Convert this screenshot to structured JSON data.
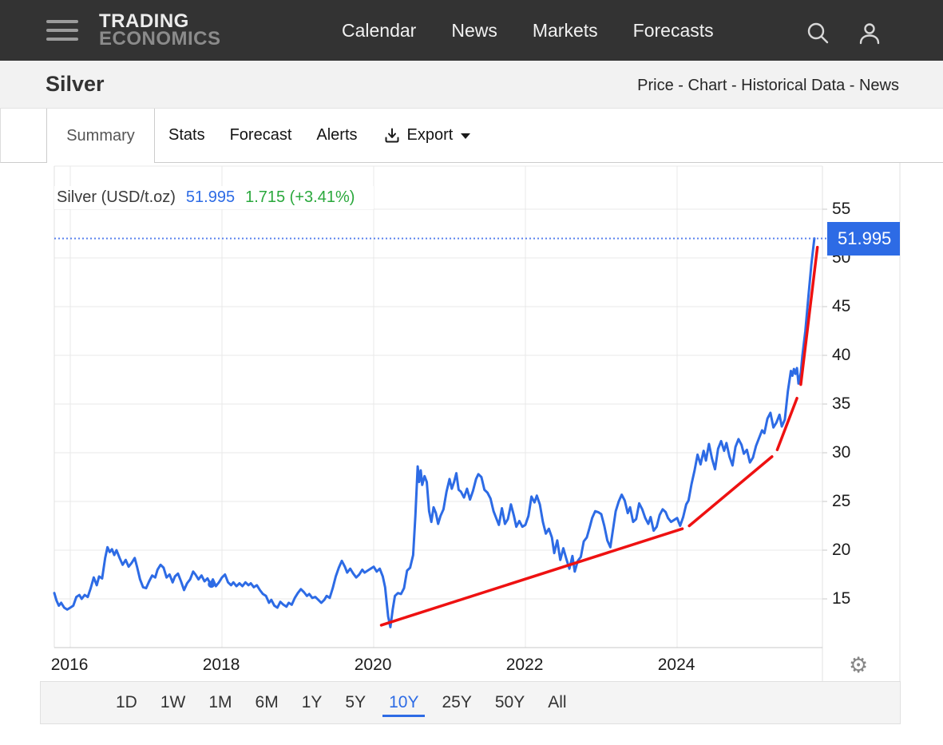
{
  "header": {
    "brand_line1": "TRADING",
    "brand_line2": "ECONOMICS",
    "nav": [
      "Calendar",
      "News",
      "Markets",
      "Forecasts"
    ]
  },
  "titlebar": {
    "title": "Silver",
    "breadcrumb": "Price - Chart - Historical Data - News"
  },
  "tabs": {
    "items": [
      "Summary",
      "Stats",
      "Forecast",
      "Alerts"
    ],
    "active": "Summary",
    "export_label": "Export"
  },
  "legend": {
    "name": "Silver (USD/t.oz)",
    "price": "51.995",
    "change": "1.715 (+3.41%)"
  },
  "price_marker": {
    "label": "51.995"
  },
  "controls": {
    "gear_glyph": "⚙"
  },
  "ranges": {
    "items": [
      "1D",
      "1W",
      "1M",
      "6M",
      "1Y",
      "5Y",
      "10Y",
      "25Y",
      "50Y",
      "All"
    ],
    "active": "10Y"
  },
  "colors": {
    "header_bg": "#333333",
    "blue": "#2d6be5",
    "dotted_blue": "#5b83ee",
    "green": "#2aa83c",
    "red": "#ee1111",
    "grid": "#e9e9e9",
    "axis": "#c9c9c9",
    "plot_border": "#e2e2e2",
    "label_box": "#2d6be5"
  },
  "chart_data": {
    "type": "line",
    "title": "Silver (USD/t.oz)",
    "unit": "USD/t.oz",
    "current_price": 51.995,
    "change": 1.715,
    "change_pct": "+3.41%",
    "x_ticks": [
      2016,
      2018,
      2020,
      2022,
      2024
    ],
    "y_ticks": [
      15,
      20,
      25,
      30,
      35,
      40,
      45,
      50,
      55
    ],
    "xlim": [
      2015.79,
      2026.0
    ],
    "ylim": [
      10,
      60
    ],
    "grid": true,
    "legend_position": "top-left",
    "series": [
      {
        "name": "Silver",
        "points": [
          [
            2015.79,
            15.6
          ],
          [
            2015.82,
            14.8
          ],
          [
            2015.85,
            14.3
          ],
          [
            2015.88,
            14.6
          ],
          [
            2015.92,
            14.1
          ],
          [
            2015.96,
            13.9
          ],
          [
            2016.0,
            14.1
          ],
          [
            2016.04,
            14.3
          ],
          [
            2016.08,
            15.2
          ],
          [
            2016.12,
            15.4
          ],
          [
            2016.15,
            15.0
          ],
          [
            2016.19,
            15.4
          ],
          [
            2016.23,
            15.2
          ],
          [
            2016.27,
            16.1
          ],
          [
            2016.31,
            17.2
          ],
          [
            2016.35,
            16.4
          ],
          [
            2016.38,
            17.3
          ],
          [
            2016.42,
            17.1
          ],
          [
            2016.46,
            19.2
          ],
          [
            2016.49,
            20.3
          ],
          [
            2016.52,
            19.8
          ],
          [
            2016.55,
            20.1
          ],
          [
            2016.58,
            19.5
          ],
          [
            2016.61,
            20.0
          ],
          [
            2016.65,
            19.2
          ],
          [
            2016.69,
            18.5
          ],
          [
            2016.73,
            19.0
          ],
          [
            2016.77,
            18.3
          ],
          [
            2016.81,
            18.7
          ],
          [
            2016.85,
            19.2
          ],
          [
            2016.88,
            18.3
          ],
          [
            2016.92,
            17.0
          ],
          [
            2016.96,
            16.2
          ],
          [
            2017.0,
            16.1
          ],
          [
            2017.04,
            16.8
          ],
          [
            2017.08,
            17.4
          ],
          [
            2017.12,
            17.2
          ],
          [
            2017.15,
            18.0
          ],
          [
            2017.19,
            18.5
          ],
          [
            2017.23,
            18.2
          ],
          [
            2017.27,
            17.2
          ],
          [
            2017.31,
            17.5
          ],
          [
            2017.35,
            16.7
          ],
          [
            2017.38,
            17.3
          ],
          [
            2017.42,
            17.6
          ],
          [
            2017.46,
            16.8
          ],
          [
            2017.5,
            15.9
          ],
          [
            2017.54,
            16.6
          ],
          [
            2017.58,
            17.0
          ],
          [
            2017.62,
            17.8
          ],
          [
            2017.65,
            17.5
          ],
          [
            2017.69,
            17.0
          ],
          [
            2017.73,
            17.4
          ],
          [
            2017.77,
            16.8
          ],
          [
            2017.81,
            17.1
          ],
          [
            2017.85,
            16.5
          ],
          [
            2017.88,
            17.0
          ],
          [
            2017.92,
            16.3
          ],
          [
            2017.96,
            16.7
          ],
          [
            2018.0,
            17.2
          ],
          [
            2018.04,
            17.5
          ],
          [
            2018.08,
            16.7
          ],
          [
            2018.12,
            16.4
          ],
          [
            2018.15,
            16.7
          ],
          [
            2018.19,
            16.3
          ],
          [
            2018.23,
            16.6
          ],
          [
            2018.27,
            16.3
          ],
          [
            2018.31,
            16.7
          ],
          [
            2018.35,
            16.4
          ],
          [
            2018.38,
            16.6
          ],
          [
            2018.42,
            16.2
          ],
          [
            2018.46,
            16.4
          ],
          [
            2018.5,
            15.9
          ],
          [
            2018.54,
            15.5
          ],
          [
            2018.58,
            15.3
          ],
          [
            2018.62,
            14.6
          ],
          [
            2018.65,
            14.9
          ],
          [
            2018.69,
            14.3
          ],
          [
            2018.73,
            14.1
          ],
          [
            2018.77,
            14.7
          ],
          [
            2018.81,
            14.4
          ],
          [
            2018.85,
            14.2
          ],
          [
            2018.88,
            14.6
          ],
          [
            2018.92,
            14.4
          ],
          [
            2018.96,
            15.1
          ],
          [
            2019.0,
            15.6
          ],
          [
            2019.04,
            16.0
          ],
          [
            2019.08,
            15.7
          ],
          [
            2019.12,
            15.3
          ],
          [
            2019.15,
            15.5
          ],
          [
            2019.19,
            15.1
          ],
          [
            2019.23,
            15.2
          ],
          [
            2019.27,
            14.9
          ],
          [
            2019.31,
            14.6
          ],
          [
            2019.35,
            14.9
          ],
          [
            2019.38,
            15.3
          ],
          [
            2019.42,
            15.1
          ],
          [
            2019.46,
            16.1
          ],
          [
            2019.5,
            17.3
          ],
          [
            2019.54,
            18.2
          ],
          [
            2019.58,
            18.9
          ],
          [
            2019.62,
            18.3
          ],
          [
            2019.65,
            17.7
          ],
          [
            2019.69,
            18.1
          ],
          [
            2019.73,
            17.6
          ],
          [
            2019.77,
            17.2
          ],
          [
            2019.81,
            17.5
          ],
          [
            2019.85,
            18.0
          ],
          [
            2019.88,
            17.7
          ],
          [
            2019.92,
            17.9
          ],
          [
            2019.96,
            18.1
          ],
          [
            2020.0,
            18.3
          ],
          [
            2020.04,
            17.8
          ],
          [
            2020.08,
            18.1
          ],
          [
            2020.12,
            17.3
          ],
          [
            2020.15,
            16.2
          ],
          [
            2020.19,
            13.2
          ],
          [
            2020.22,
            12.1
          ],
          [
            2020.25,
            13.9
          ],
          [
            2020.28,
            15.3
          ],
          [
            2020.32,
            15.6
          ],
          [
            2020.36,
            15.5
          ],
          [
            2020.4,
            16.1
          ],
          [
            2020.44,
            17.9
          ],
          [
            2020.48,
            18.2
          ],
          [
            2020.52,
            19.5
          ],
          [
            2020.55,
            23.5
          ],
          [
            2020.58,
            28.6
          ],
          [
            2020.6,
            27.0
          ],
          [
            2020.62,
            28.2
          ],
          [
            2020.64,
            26.7
          ],
          [
            2020.67,
            27.6
          ],
          [
            2020.7,
            27.0
          ],
          [
            2020.73,
            24.0
          ],
          [
            2020.76,
            22.9
          ],
          [
            2020.79,
            24.4
          ],
          [
            2020.82,
            23.8
          ],
          [
            2020.85,
            22.7
          ],
          [
            2020.88,
            23.5
          ],
          [
            2020.92,
            24.2
          ],
          [
            2020.96,
            26.0
          ],
          [
            2021.0,
            27.3
          ],
          [
            2021.03,
            26.3
          ],
          [
            2021.06,
            27.0
          ],
          [
            2021.09,
            27.9
          ],
          [
            2021.12,
            26.2
          ],
          [
            2021.15,
            26.0
          ],
          [
            2021.19,
            25.4
          ],
          [
            2021.23,
            26.3
          ],
          [
            2021.27,
            25.2
          ],
          [
            2021.31,
            26.1
          ],
          [
            2021.35,
            27.3
          ],
          [
            2021.38,
            27.8
          ],
          [
            2021.42,
            27.5
          ],
          [
            2021.46,
            26.2
          ],
          [
            2021.5,
            25.9
          ],
          [
            2021.54,
            25.3
          ],
          [
            2021.58,
            24.0
          ],
          [
            2021.62,
            23.2
          ],
          [
            2021.65,
            22.6
          ],
          [
            2021.69,
            24.3
          ],
          [
            2021.73,
            22.7
          ],
          [
            2021.77,
            23.2
          ],
          [
            2021.81,
            24.7
          ],
          [
            2021.85,
            23.5
          ],
          [
            2021.88,
            22.4
          ],
          [
            2021.92,
            23.0
          ],
          [
            2021.96,
            22.4
          ],
          [
            2022.0,
            22.6
          ],
          [
            2022.04,
            23.5
          ],
          [
            2022.08,
            25.5
          ],
          [
            2022.12,
            24.9
          ],
          [
            2022.15,
            25.6
          ],
          [
            2022.19,
            24.7
          ],
          [
            2022.23,
            22.9
          ],
          [
            2022.27,
            21.7
          ],
          [
            2022.31,
            22.2
          ],
          [
            2022.35,
            21.3
          ],
          [
            2022.38,
            19.7
          ],
          [
            2022.42,
            21.0
          ],
          [
            2022.46,
            19.0
          ],
          [
            2022.5,
            20.2
          ],
          [
            2022.54,
            19.1
          ],
          [
            2022.58,
            18.1
          ],
          [
            2022.62,
            19.4
          ],
          [
            2022.65,
            17.8
          ],
          [
            2022.69,
            18.9
          ],
          [
            2022.73,
            19.3
          ],
          [
            2022.77,
            20.9
          ],
          [
            2022.81,
            21.3
          ],
          [
            2022.85,
            22.4
          ],
          [
            2022.88,
            23.3
          ],
          [
            2022.92,
            24.0
          ],
          [
            2022.96,
            23.9
          ],
          [
            2023.0,
            23.7
          ],
          [
            2023.04,
            22.5
          ],
          [
            2023.08,
            21.0
          ],
          [
            2023.12,
            20.3
          ],
          [
            2023.15,
            21.9
          ],
          [
            2023.19,
            24.0
          ],
          [
            2023.23,
            25.0
          ],
          [
            2023.27,
            25.7
          ],
          [
            2023.31,
            25.1
          ],
          [
            2023.35,
            23.8
          ],
          [
            2023.38,
            24.4
          ],
          [
            2023.42,
            22.9
          ],
          [
            2023.46,
            23.2
          ],
          [
            2023.5,
            24.8
          ],
          [
            2023.54,
            24.2
          ],
          [
            2023.58,
            23.3
          ],
          [
            2023.62,
            22.7
          ],
          [
            2023.65,
            23.4
          ],
          [
            2023.69,
            22.0
          ],
          [
            2023.73,
            22.4
          ],
          [
            2023.77,
            23.6
          ],
          [
            2023.81,
            24.2
          ],
          [
            2023.85,
            23.9
          ],
          [
            2023.88,
            23.3
          ],
          [
            2023.92,
            22.9
          ],
          [
            2023.96,
            23.1
          ],
          [
            2024.0,
            23.3
          ],
          [
            2024.04,
            22.5
          ],
          [
            2024.08,
            23.4
          ],
          [
            2024.12,
            24.7
          ],
          [
            2024.15,
            25.1
          ],
          [
            2024.19,
            26.8
          ],
          [
            2024.23,
            28.2
          ],
          [
            2024.27,
            29.8
          ],
          [
            2024.31,
            28.8
          ],
          [
            2024.35,
            30.2
          ],
          [
            2024.38,
            29.2
          ],
          [
            2024.42,
            30.9
          ],
          [
            2024.46,
            29.4
          ],
          [
            2024.5,
            28.3
          ],
          [
            2024.54,
            30.4
          ],
          [
            2024.58,
            31.2
          ],
          [
            2024.62,
            30.2
          ],
          [
            2024.65,
            31.0
          ],
          [
            2024.69,
            29.6
          ],
          [
            2024.73,
            28.7
          ],
          [
            2024.77,
            30.6
          ],
          [
            2024.81,
            31.4
          ],
          [
            2024.85,
            30.8
          ],
          [
            2024.88,
            29.9
          ],
          [
            2024.92,
            30.3
          ],
          [
            2024.96,
            29.0
          ],
          [
            2025.0,
            29.5
          ],
          [
            2025.04,
            30.7
          ],
          [
            2025.08,
            31.5
          ],
          [
            2025.12,
            32.3
          ],
          [
            2025.15,
            32.0
          ],
          [
            2025.19,
            33.5
          ],
          [
            2025.23,
            34.1
          ],
          [
            2025.27,
            32.6
          ],
          [
            2025.31,
            33.1
          ],
          [
            2025.35,
            33.9
          ],
          [
            2025.38,
            32.7
          ],
          [
            2025.42,
            33.4
          ],
          [
            2025.46,
            36.3
          ],
          [
            2025.5,
            38.4
          ],
          [
            2025.52,
            37.9
          ],
          [
            2025.54,
            38.6
          ],
          [
            2025.56,
            38.1
          ],
          [
            2025.58,
            38.7
          ],
          [
            2025.6,
            37.1
          ],
          [
            2025.63,
            38.2
          ],
          [
            2025.65,
            39.9
          ],
          [
            2025.69,
            42.5
          ],
          [
            2025.73,
            46.0
          ],
          [
            2025.77,
            49.3
          ],
          [
            2025.81,
            52.0
          ]
        ],
        "marker_point": [
          2017.86,
          16.5
        ]
      }
    ],
    "trendlines": [
      {
        "points": [
          [
            2020.1,
            12.3
          ],
          [
            2024.07,
            22.2
          ]
        ]
      },
      {
        "points": [
          [
            2024.16,
            22.5
          ],
          [
            2025.25,
            29.6
          ]
        ]
      },
      {
        "points": [
          [
            2025.32,
            30.3
          ],
          [
            2025.58,
            35.6
          ]
        ]
      },
      {
        "points": [
          [
            2025.63,
            37.0
          ],
          [
            2025.85,
            51.1
          ]
        ]
      }
    ],
    "current_price_line": 51.995
  }
}
